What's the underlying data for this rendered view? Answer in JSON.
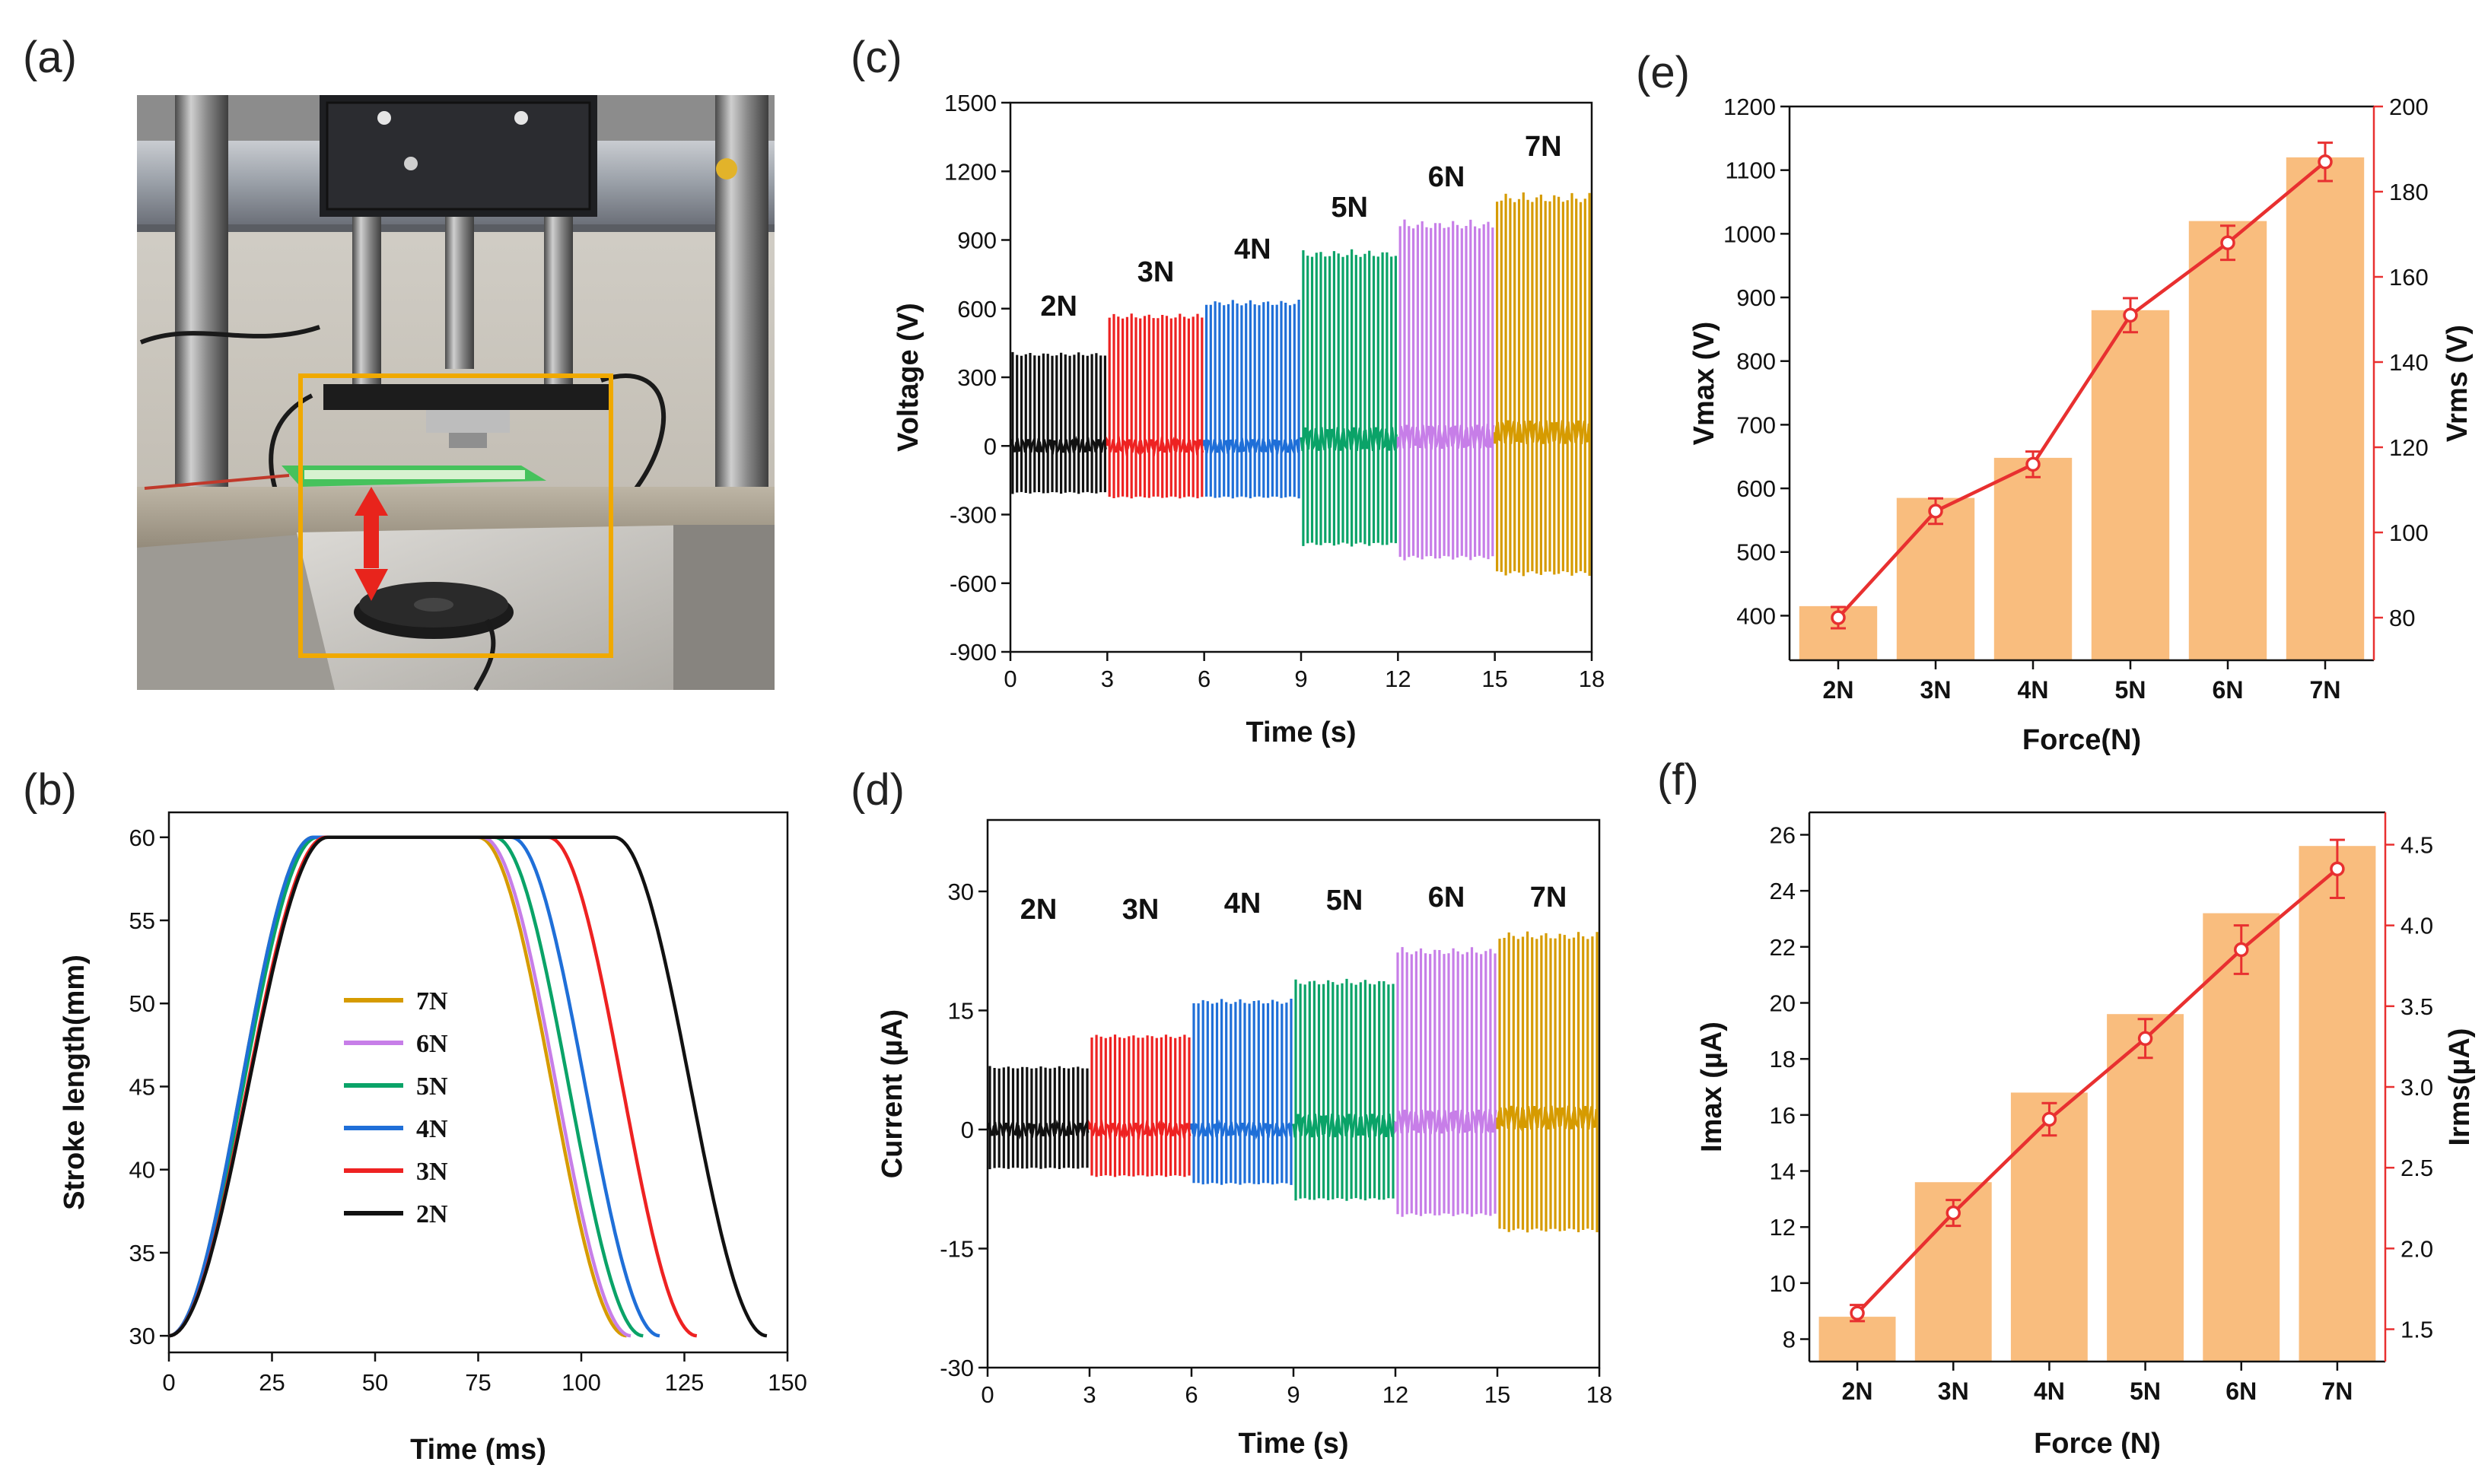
{
  "panel_labels": [
    "(a)",
    "(b)",
    "(c)",
    "(d)",
    "(e)",
    "(f)"
  ],
  "colors": {
    "2N": "#111111",
    "3N": "#ee2222",
    "4N": "#1f6fd8",
    "5N": "#0aa368",
    "6N": "#c77ee8",
    "7N": "#d69b00",
    "bar": "#f9bd7e",
    "line": "#e83030",
    "photo_box": "#f0a900"
  },
  "chart_data": [
    {
      "id": "b",
      "type": "line",
      "xlabel": "Time (ms)",
      "ylabel": "Stroke length(mm)",
      "xlim": [
        0,
        150
      ],
      "ylim": [
        29,
        61.5
      ],
      "xticks": [
        0,
        25,
        50,
        75,
        100,
        125,
        150
      ],
      "yticks": [
        30,
        35,
        40,
        45,
        50,
        55,
        60
      ],
      "legend": [
        "7N",
        "6N",
        "5N",
        "4N",
        "3N",
        "2N"
      ],
      "series": [
        {
          "name": "7N",
          "rise_start": 0,
          "plateau_start": 35,
          "plateau_end": 75,
          "end": 111
        },
        {
          "name": "6N",
          "rise_start": 0,
          "plateau_start": 35.5,
          "plateau_end": 76,
          "end": 112
        },
        {
          "name": "5N",
          "rise_start": 0,
          "plateau_start": 36,
          "plateau_end": 79,
          "end": 115
        },
        {
          "name": "4N",
          "rise_start": 0,
          "plateau_start": 35,
          "plateau_end": 83,
          "end": 119
        },
        {
          "name": "3N",
          "rise_start": 0,
          "plateau_start": 38,
          "plateau_end": 92,
          "end": 128
        },
        {
          "name": "2N",
          "rise_start": 0,
          "plateau_start": 38.5,
          "plateau_end": 108,
          "end": 145
        }
      ]
    },
    {
      "id": "c",
      "type": "line",
      "xlabel": "Time (s)",
      "ylabel": "Voltage (V)",
      "xlim": [
        0,
        18
      ],
      "ylim": [
        -900,
        1500
      ],
      "xticks": [
        0,
        3,
        6,
        9,
        12,
        15,
        18
      ],
      "yticks": [
        -900,
        -600,
        -300,
        0,
        300,
        600,
        900,
        1200,
        1500
      ],
      "segments": [
        {
          "label": "2N",
          "t0": 0,
          "t1": 3,
          "pos": 410,
          "neg": -210,
          "base": 0
        },
        {
          "label": "3N",
          "t0": 3,
          "t1": 6,
          "pos": 580,
          "neg": -230,
          "base": 0
        },
        {
          "label": "4N",
          "t0": 6,
          "t1": 9,
          "pos": 640,
          "neg": -230,
          "base": 0
        },
        {
          "label": "5N",
          "t0": 9,
          "t1": 12,
          "pos": 860,
          "neg": -440,
          "base": 30
        },
        {
          "label": "6N",
          "t0": 12,
          "t1": 15,
          "pos": 990,
          "neg": -500,
          "base": 40
        },
        {
          "label": "7N",
          "t0": 15,
          "t1": 18,
          "pos": 1110,
          "neg": -570,
          "base": 60
        }
      ],
      "annotations": [
        "2N",
        "3N",
        "4N",
        "5N",
        "6N",
        "7N"
      ]
    },
    {
      "id": "d",
      "type": "line",
      "xlabel": "Time (s)",
      "ylabel": "Current (µA)",
      "xlim": [
        0,
        18
      ],
      "ylim": [
        -30,
        39
      ],
      "xticks": [
        0,
        3,
        6,
        9,
        12,
        15,
        18
      ],
      "yticks": [
        -30,
        -15,
        0,
        15,
        30
      ],
      "segments": [
        {
          "label": "2N",
          "t0": 0,
          "t1": 3,
          "pos": 8,
          "neg": -5,
          "base": 0
        },
        {
          "label": "3N",
          "t0": 3,
          "t1": 6,
          "pos": 12,
          "neg": -6,
          "base": 0
        },
        {
          "label": "4N",
          "t0": 6,
          "t1": 9,
          "pos": 16.5,
          "neg": -7,
          "base": 0
        },
        {
          "label": "5N",
          "t0": 9,
          "t1": 12,
          "pos": 19,
          "neg": -9,
          "base": 0.5
        },
        {
          "label": "6N",
          "t0": 12,
          "t1": 15,
          "pos": 23,
          "neg": -11,
          "base": 1
        },
        {
          "label": "7N",
          "t0": 15,
          "t1": 18,
          "pos": 25,
          "neg": -13,
          "base": 1.5
        }
      ],
      "annotations": [
        "2N",
        "3N",
        "4N",
        "5N",
        "6N",
        "7N"
      ]
    },
    {
      "id": "e",
      "type": "bar",
      "xlabel": "Force(N)",
      "ylabel": "Vmax (V)",
      "ylabel_right": "Vrms (V)",
      "categories": [
        "2N",
        "3N",
        "4N",
        "5N",
        "6N",
        "7N"
      ],
      "values": [
        415,
        585,
        648,
        880,
        1020,
        1120
      ],
      "ylim": [
        330,
        1200
      ],
      "yticks": [
        400,
        500,
        600,
        700,
        800,
        900,
        1000,
        1100,
        1200
      ],
      "line": {
        "name": "Vrms",
        "values": [
          80,
          105,
          116,
          151,
          168,
          187
        ],
        "errors": [
          2.5,
          3,
          3,
          4,
          4,
          4.5
        ]
      },
      "ylim_right": [
        70,
        200
      ],
      "yticks_right": [
        80,
        100,
        120,
        140,
        160,
        180,
        200
      ]
    },
    {
      "id": "f",
      "type": "bar",
      "xlabel": "Force (N)",
      "ylabel": "Imax (µA)",
      "ylabel_right": "Irms(µA)",
      "categories": [
        "2N",
        "3N",
        "4N",
        "5N",
        "6N",
        "7N"
      ],
      "values": [
        8.8,
        13.6,
        16.8,
        19.6,
        23.2,
        25.6
      ],
      "ylim": [
        7.2,
        26.8
      ],
      "yticks": [
        8,
        10,
        12,
        14,
        16,
        18,
        20,
        22,
        24,
        26
      ],
      "line": {
        "name": "Irms",
        "values": [
          1.6,
          2.22,
          2.8,
          3.3,
          3.85,
          4.35
        ],
        "errors": [
          0.05,
          0.08,
          0.1,
          0.12,
          0.15,
          0.18
        ]
      },
      "ylim_right": [
        1.3,
        4.7
      ],
      "yticks_right": [
        1.5,
        2.0,
        2.5,
        3.0,
        3.5,
        4.0,
        4.5
      ]
    }
  ]
}
